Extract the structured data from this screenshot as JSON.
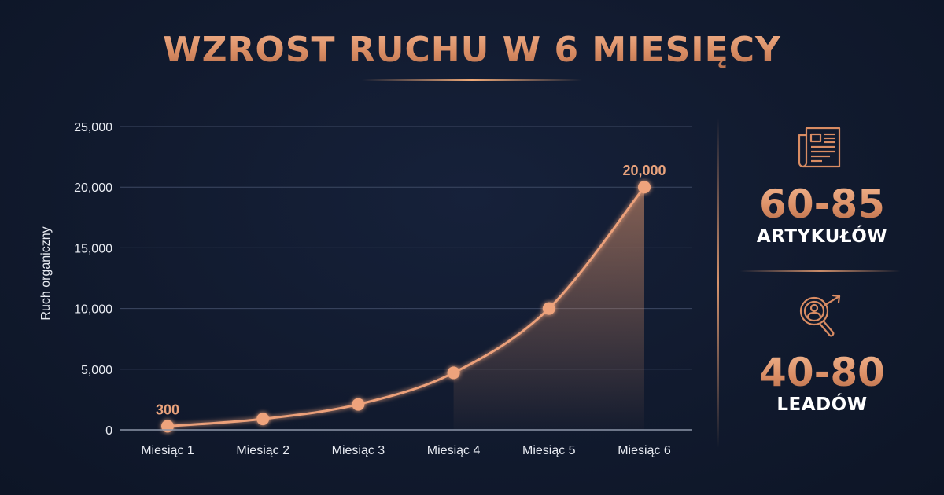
{
  "title": "WZROST RUCHU W 6 MIESIĘCY",
  "colors": {
    "background": "#111a2e",
    "accent": "#e0966d",
    "text": "#ffffff",
    "grid": "#3a4560"
  },
  "chart_data": {
    "type": "line",
    "title": "WZROST RUCHU W 6 MIESIĘCY",
    "xlabel": "",
    "ylabel": "Ruch organiczny",
    "categories": [
      "Miesiąc 1",
      "Miesiąc 2",
      "Miesiąc 3",
      "Miesiąc 4",
      "Miesiąc 5",
      "Miesiąc 6"
    ],
    "values": [
      300,
      900,
      2100,
      4700,
      10000,
      20000
    ],
    "ylim": [
      0,
      25000
    ],
    "yticks": [
      0,
      5000,
      10000,
      15000,
      20000,
      25000
    ],
    "ytick_labels": [
      "0",
      "5,000",
      "10,000",
      "15,000",
      "20,000",
      "25,000"
    ],
    "annotations": [
      {
        "category": "Miesiąc 1",
        "label": "300"
      },
      {
        "category": "Miesiąc 6",
        "label": "20,000"
      }
    ],
    "grid": true,
    "legend": null,
    "area_fill": "under curve between Miesiąc 4 and Miesiąc 6"
  },
  "stats": [
    {
      "icon": "newspaper-icon",
      "value": "60-85",
      "label": "ARTYKUŁÓW"
    },
    {
      "icon": "lead-search-growth-icon",
      "value": "40-80",
      "label": "LEADÓW"
    }
  ]
}
